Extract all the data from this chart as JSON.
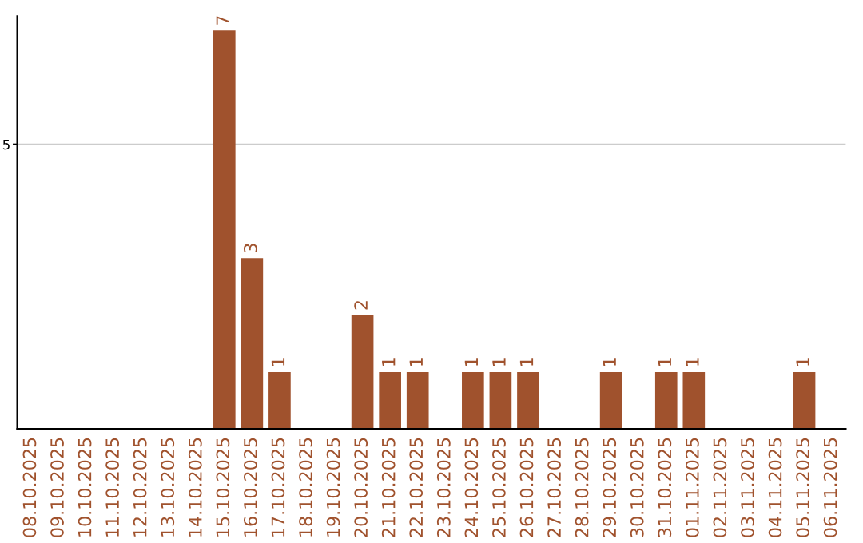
{
  "chart_data": {
    "type": "bar",
    "categories": [
      "08.10.2025",
      "09.10.2025",
      "10.10.2025",
      "11.10.2025",
      "12.10.2025",
      "13.10.2025",
      "14.10.2025",
      "15.10.2025",
      "16.10.2025",
      "17.10.2025",
      "18.10.2025",
      "19.10.2025",
      "20.10.2025",
      "21.10.2025",
      "22.10.2025",
      "23.10.2025",
      "24.10.2025",
      "25.10.2025",
      "26.10.2025",
      "27.10.2025",
      "28.10.2025",
      "29.10.2025",
      "30.10.2025",
      "31.10.2025",
      "01.11.2025",
      "02.11.2025",
      "03.11.2025",
      "04.11.2025",
      "05.11.2025",
      "06.11.2025"
    ],
    "values": [
      0,
      0,
      0,
      0,
      0,
      0,
      0,
      7,
      3,
      1,
      0,
      0,
      2,
      1,
      1,
      0,
      1,
      1,
      1,
      0,
      0,
      1,
      0,
      1,
      1,
      0,
      0,
      0,
      1,
      0
    ],
    "value_labels": [
      null,
      null,
      null,
      null,
      null,
      null,
      null,
      "7",
      "3",
      "1",
      null,
      null,
      "2",
      "1",
      "1",
      null,
      "1",
      "1",
      "1",
      null,
      null,
      "1",
      null,
      "1",
      "1",
      null,
      null,
      null,
      "1",
      null
    ],
    "color": "#a0522d",
    "ylim": [
      0,
      7.25
    ],
    "yticks": [
      5
    ],
    "grid": "y"
  }
}
